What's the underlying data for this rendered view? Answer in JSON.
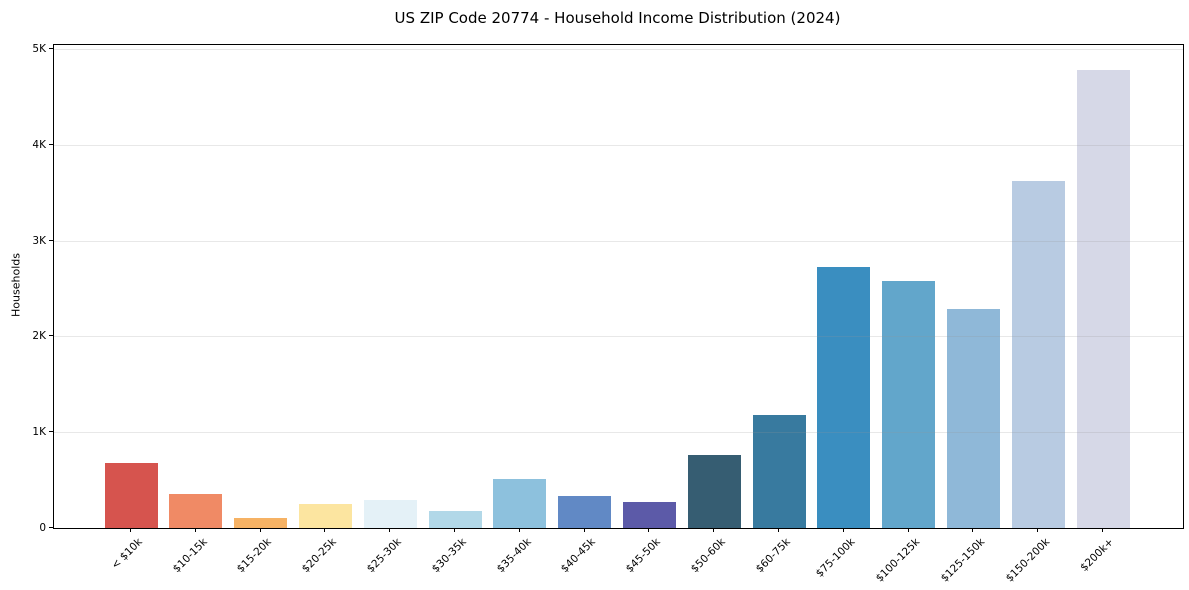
{
  "title": "US ZIP Code 20774 - Household Income Distribution (2024)",
  "chart_data": {
    "type": "bar",
    "title": "US ZIP Code 20774 - Household Income Distribution (2024)",
    "xlabel": "",
    "ylabel": "Households",
    "categories": [
      "< $10k",
      "$10-15k",
      "$15-20k",
      "$20-25k",
      "$25-30k",
      "$30-35k",
      "$35-40k",
      "$40-45k",
      "$45-50k",
      "$50-60k",
      "$60-75k",
      "$75-100k",
      "$100-125k",
      "$125-150k",
      "$150-200k",
      "$200k+"
    ],
    "values": [
      680,
      360,
      110,
      250,
      290,
      180,
      515,
      335,
      270,
      760,
      1180,
      2720,
      2580,
      2290,
      3620,
      4780
    ],
    "bar_colors": [
      "#d6544e",
      "#f08a65",
      "#f6b264",
      "#fce5a0",
      "#e4f1f7",
      "#b2d8e8",
      "#8dc1dd",
      "#6189c5",
      "#5c5aa8",
      "#365d72",
      "#387a9f",
      "#3a8ec0",
      "#62a6cb",
      "#8fb8d8",
      "#b8cbe2",
      "#d6d8e7"
    ],
    "ylim": [
      0,
      5000
    ],
    "y_ticks": [
      {
        "value": 0,
        "label": "0"
      },
      {
        "value": 1000,
        "label": "1K"
      },
      {
        "value": 2000,
        "label": "2K"
      },
      {
        "value": 3000,
        "label": "3K"
      },
      {
        "value": 4000,
        "label": "4K"
      },
      {
        "value": 5000,
        "label": "5K"
      }
    ],
    "legend": "none",
    "grid": "horizontal-faint-over-bars",
    "background_color": "#ffffff",
    "x_tick_rotation_deg": 45
  }
}
